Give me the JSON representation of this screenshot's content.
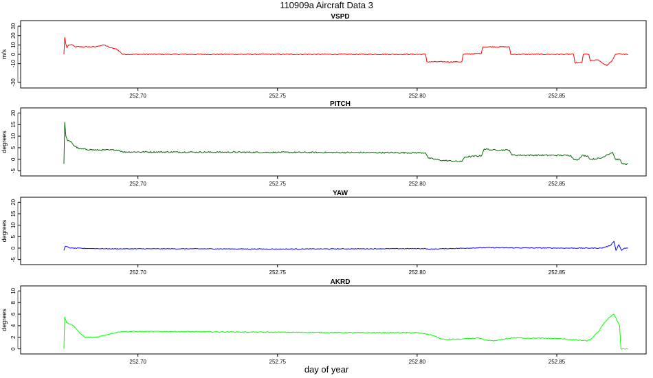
{
  "title": "110909a   Aircraft Data 3",
  "chart_data": [
    {
      "type": "line",
      "title": "VSPD",
      "ylabel": "m/s",
      "color": "#ff0000",
      "xlim": [
        252.658,
        252.882
      ],
      "ylim": [
        -33,
        33
      ],
      "x_ticks": [
        252.7,
        252.75,
        252.8,
        252.85
      ],
      "x_tick_labels": [
        "252.70",
        "252.75",
        "252.80",
        "252.85"
      ],
      "y_ticks": [
        -30,
        -10,
        0,
        10,
        20,
        30
      ],
      "y_tick_labels": [
        "-30",
        "-10",
        "0",
        "10",
        "20",
        "30"
      ],
      "noise": 0.5,
      "series": [
        {
          "points": [
            [
              252.6735,
              0
            ],
            [
              252.6738,
              18
            ],
            [
              252.6742,
              11
            ],
            [
              252.6746,
              7
            ],
            [
              252.6752,
              10
            ],
            [
              252.6765,
              10
            ],
            [
              252.6775,
              8
            ],
            [
              252.685,
              8
            ],
            [
              252.686,
              9
            ],
            [
              252.688,
              10
            ],
            [
              252.69,
              7
            ],
            [
              252.692,
              6
            ],
            [
              252.6935,
              3
            ],
            [
              252.6945,
              0
            ],
            [
              252.803,
              0
            ],
            [
              252.8035,
              -8
            ],
            [
              252.816,
              -8
            ],
            [
              252.8165,
              0
            ],
            [
              252.823,
              1
            ],
            [
              252.8235,
              8
            ],
            [
              252.833,
              8
            ],
            [
              252.8335,
              0
            ],
            [
              252.856,
              0
            ],
            [
              252.8565,
              -9
            ],
            [
              252.859,
              -9
            ],
            [
              252.8595,
              0
            ],
            [
              252.8615,
              0
            ],
            [
              252.862,
              -7
            ],
            [
              252.865,
              -6
            ],
            [
              252.866,
              -9
            ],
            [
              252.868,
              -12
            ],
            [
              252.87,
              -6
            ],
            [
              252.871,
              0
            ],
            [
              252.8725,
              1
            ],
            [
              252.8735,
              0
            ],
            [
              252.8755,
              0
            ]
          ]
        }
      ]
    },
    {
      "type": "line",
      "title": "PITCH",
      "ylabel": "degrees",
      "color": "#006400",
      "xlim": [
        252.658,
        252.882
      ],
      "ylim": [
        -6,
        21
      ],
      "x_ticks": [
        252.7,
        252.75,
        252.8,
        252.85
      ],
      "x_tick_labels": [
        "252.70",
        "252.75",
        "252.80",
        "252.85"
      ],
      "y_ticks": [
        -5,
        0,
        5,
        10,
        15,
        20
      ],
      "y_tick_labels": [
        "-5",
        "0",
        "5",
        "10",
        "15",
        "20"
      ],
      "noise": 0.3,
      "series": [
        {
          "points": [
            [
              252.6735,
              -2
            ],
            [
              252.6738,
              16
            ],
            [
              252.6742,
              10
            ],
            [
              252.6748,
              8
            ],
            [
              252.6762,
              7.5
            ],
            [
              252.677,
              6
            ],
            [
              252.679,
              4.5
            ],
            [
              252.685,
              4
            ],
            [
              252.69,
              4
            ],
            [
              252.693,
              4
            ],
            [
              252.6945,
              3.2
            ],
            [
              252.72,
              3.1
            ],
            [
              252.75,
              3
            ],
            [
              252.78,
              2.9
            ],
            [
              252.803,
              2.8
            ],
            [
              252.804,
              0.5
            ],
            [
              252.809,
              -0.5
            ],
            [
              252.816,
              -1
            ],
            [
              252.817,
              1
            ],
            [
              252.823,
              1.5
            ],
            [
              252.824,
              4.5
            ],
            [
              252.827,
              4
            ],
            [
              252.833,
              4
            ],
            [
              252.834,
              1.8
            ],
            [
              252.855,
              1.7
            ],
            [
              252.856,
              0
            ],
            [
              252.858,
              0
            ],
            [
              252.859,
              1.6
            ],
            [
              252.861,
              1.5
            ],
            [
              252.862,
              0
            ],
            [
              252.866,
              0.5
            ],
            [
              252.868,
              2
            ],
            [
              252.87,
              3
            ],
            [
              252.871,
              0
            ],
            [
              252.8725,
              0
            ],
            [
              252.8735,
              -2
            ],
            [
              252.8755,
              -2
            ]
          ]
        }
      ]
    },
    {
      "type": "line",
      "title": "YAW",
      "ylabel": "degrees",
      "color": "#0000ff",
      "xlim": [
        252.658,
        252.882
      ],
      "ylim": [
        -6,
        21
      ],
      "x_ticks": [
        252.7,
        252.75,
        252.8,
        252.85
      ],
      "x_tick_labels": [
        "252.70",
        "252.75",
        "252.80",
        "252.85"
      ],
      "y_ticks": [
        -5,
        0,
        5,
        10,
        15,
        20
      ],
      "y_tick_labels": [
        "-5",
        "0",
        "5",
        "10",
        "15",
        "20"
      ],
      "noise": 0.15,
      "series": [
        {
          "points": [
            [
              252.6735,
              -1
            ],
            [
              252.674,
              0.8
            ],
            [
              252.676,
              0
            ],
            [
              252.69,
              -0.3
            ],
            [
              252.72,
              -0.3
            ],
            [
              252.75,
              -0.4
            ],
            [
              252.78,
              -0.3
            ],
            [
              252.803,
              -0.2
            ],
            [
              252.804,
              -0.5
            ],
            [
              252.808,
              -0.3
            ],
            [
              252.818,
              0
            ],
            [
              252.824,
              0.2
            ],
            [
              252.835,
              0.1
            ],
            [
              252.855,
              0
            ],
            [
              252.866,
              0
            ],
            [
              252.869,
              1
            ],
            [
              252.8705,
              3
            ],
            [
              252.8712,
              -1
            ],
            [
              252.8722,
              1.5
            ],
            [
              252.8732,
              -1
            ],
            [
              252.8742,
              0
            ],
            [
              252.8755,
              0
            ]
          ]
        }
      ]
    },
    {
      "type": "line",
      "title": "AKRD",
      "ylabel": "degrees",
      "color": "#00ff00",
      "xlim": [
        252.658,
        252.882
      ],
      "ylim": [
        -0.4,
        10.4
      ],
      "x_ticks": [
        252.7,
        252.75,
        252.8,
        252.85
      ],
      "x_tick_labels": [
        "252.70",
        "252.75",
        "252.80",
        "252.85"
      ],
      "y_ticks": [
        0,
        2,
        4,
        6,
        8,
        10
      ],
      "y_tick_labels": [
        "0",
        "2",
        "4",
        "6",
        "8",
        "10"
      ],
      "xlabel": "day of year",
      "noise": 0.08,
      "series": [
        {
          "points": [
            [
              252.6735,
              0
            ],
            [
              252.6738,
              5.5
            ],
            [
              252.6745,
              4.5
            ],
            [
              252.677,
              4
            ],
            [
              252.679,
              2.8
            ],
            [
              252.681,
              2
            ],
            [
              252.684,
              2
            ],
            [
              252.686,
              2.1
            ],
            [
              252.69,
              2.6
            ],
            [
              252.694,
              3
            ],
            [
              252.71,
              3
            ],
            [
              252.74,
              2.9
            ],
            [
              252.78,
              2.8
            ],
            [
              252.8,
              2.8
            ],
            [
              252.803,
              2.6
            ],
            [
              252.806,
              2.3
            ],
            [
              252.808,
              1.8
            ],
            [
              252.81,
              1.6
            ],
            [
              252.816,
              1.7
            ],
            [
              252.822,
              1.9
            ],
            [
              252.824,
              1.5
            ],
            [
              252.828,
              1.4
            ],
            [
              252.83,
              1.6
            ],
            [
              252.834,
              1.9
            ],
            [
              252.85,
              1.8
            ],
            [
              252.855,
              1.6
            ],
            [
              252.861,
              1.4
            ],
            [
              252.862,
              1.6
            ],
            [
              252.865,
              3
            ],
            [
              252.867,
              4.5
            ],
            [
              252.869,
              5.5
            ],
            [
              252.8705,
              6
            ],
            [
              252.8715,
              5
            ],
            [
              252.8725,
              4
            ],
            [
              252.873,
              0
            ],
            [
              252.8755,
              0
            ]
          ]
        }
      ]
    }
  ]
}
